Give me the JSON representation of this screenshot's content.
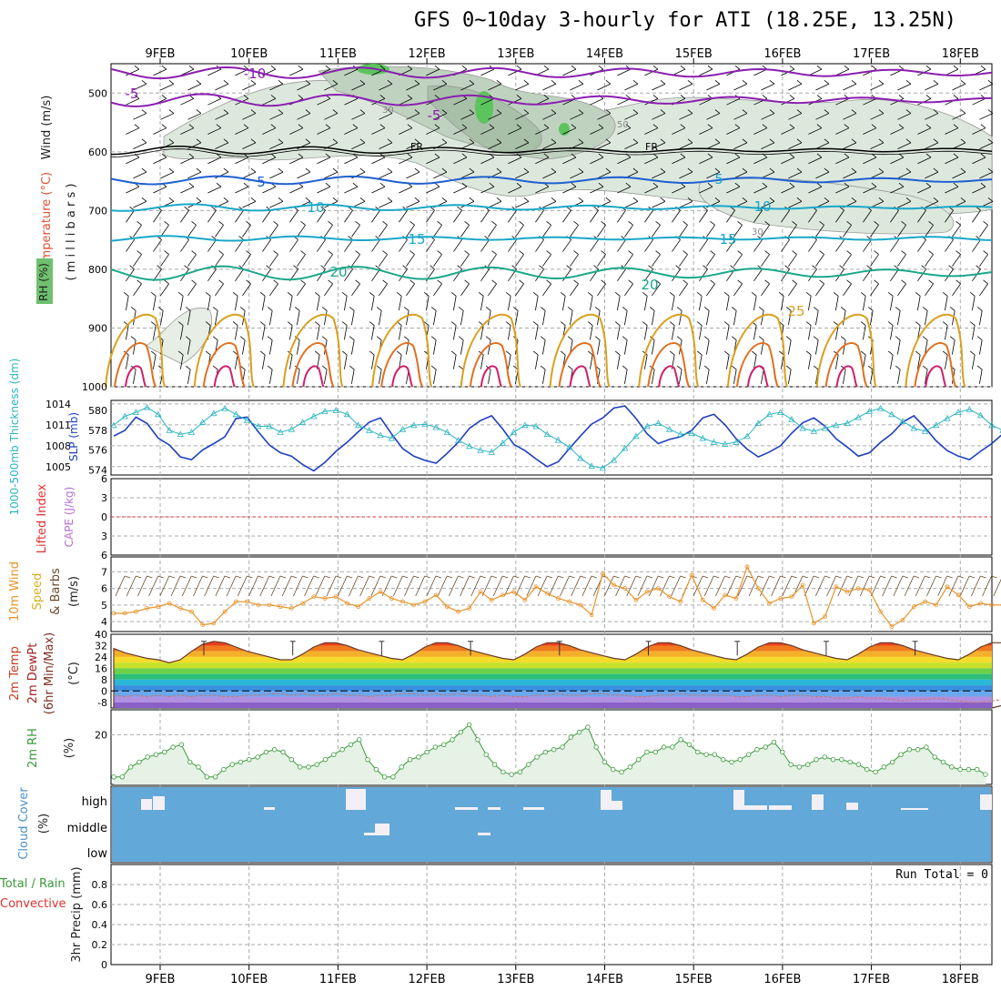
{
  "title": "GFS 0~10day 3-hourly for ATI (18.25E, 13.25N)",
  "dates": [
    "9FEB",
    "10FEB",
    "11FEB",
    "12FEB",
    "13FEB",
    "14FEB",
    "15FEB",
    "16FEB",
    "17FEB",
    "18FEB"
  ],
  "panels": {
    "upper": {
      "ylabel_wind": "Wind (m/s)",
      "ylabel_temp": "Temperature (°C)",
      "ylabel_units": "( m i l l i b a r s )",
      "ylabel_rh": "RH (%)",
      "pressure_ticks": [
        "500",
        "600",
        "700",
        "800",
        "900",
        "1000"
      ],
      "isotherm_labels": [
        "-10",
        "-5",
        "-5",
        "5",
        "5",
        "10",
        "10",
        "15",
        "15",
        "20",
        "20",
        "25",
        "FR",
        "FR"
      ],
      "rh_labels": [
        "30",
        "50",
        "30"
      ]
    },
    "thickness": {
      "ylabel_thk": "1000-500mb Thickness (dm)",
      "ylabel_slp": "SLP (mb)",
      "left_ticks": [
        "580",
        "578",
        "576",
        "574"
      ],
      "right_ticks": [
        "1014",
        "1011",
        "1008",
        "1005"
      ]
    },
    "cape": {
      "ylabel_li": "Lifted Index",
      "ylabel_cape": "CAPE (J/kg)",
      "ticks": [
        "6",
        "3",
        "0",
        "3",
        "6"
      ]
    },
    "wind10m": {
      "ylabel_1": "10m Wind",
      "ylabel_2": "Speed",
      "ylabel_3": "& Barbs",
      "ylabel_units": "(m/s)",
      "ticks": [
        "7",
        "6",
        "5",
        "4"
      ]
    },
    "temp2m": {
      "ylabel_1": "2m Temp",
      "ylabel_2": "2m DewPt",
      "ylabel_3": "(6hr Min/Max)",
      "ylabel_units": "(°C)",
      "ticks": [
        "40",
        "32",
        "24",
        "16",
        "8",
        "0",
        "-8"
      ]
    },
    "rh2m": {
      "ylabel": "2m RH",
      "ylabel_units": "(%)",
      "ticks": [
        "20"
      ]
    },
    "cloud": {
      "ylabel": "Cloud Cover",
      "ylabel_units": "(%)",
      "levels": [
        "high",
        "middle",
        "low"
      ]
    },
    "precip": {
      "ylabel_1": "Total / Rain",
      "ylabel_2": "Convective",
      "ylabel_3": "3hr Precip (mm)",
      "run_total": "Run Total = 0",
      "ticks": [
        "0.8",
        "0.6",
        "0.4",
        "0.2",
        "0"
      ]
    }
  },
  "colors": {
    "slp": "#1f3fbf",
    "thickness": "#2bb5c0",
    "wind_speed": "#e8932a",
    "rh": "#3a9a3a",
    "rh_fill": "#e6f2e6",
    "cloud_bg": "#62a8d8",
    "isotherm_neg": "#8a1fb0",
    "isotherm_cold": "#1f5fd0",
    "isotherm_cool": "#1aa8c8",
    "isotherm_mid": "#1aa88a",
    "isotherm_warm": "#d9a020",
    "isotherm_hot": "#e07020",
    "isotherm_vhot": "#d0206a"
  },
  "chart_data": [
    {
      "type": "line",
      "name": "slp_thickness",
      "series": [
        {
          "name": "SLP (mb)",
          "axis": "right",
          "values": [
            1009.4,
            1010.2,
            1012.1,
            1011.2,
            1009.1,
            1008.1,
            1006.4,
            1006.0,
            1007.4,
            1008.3,
            1009.3,
            1011.9,
            1012.1,
            1010.0,
            1008.1,
            1007.0,
            1006.5,
            1005.3,
            1004.4,
            1005.6,
            1007.2,
            1008.5,
            1010.0,
            1011.4,
            1012.0,
            1009.7,
            1007.6,
            1006.5,
            1005.9,
            1005.5,
            1006.9,
            1008.5,
            1010.5,
            1011.6,
            1012.3,
            1010.4,
            1008.2,
            1007.3,
            1006.1,
            1005.0,
            1005.7,
            1007.6,
            1009.4,
            1011.1,
            1012.0,
            1013.4,
            1013.7,
            1011.9,
            1009.7,
            1008.3,
            1008.9,
            1009.3,
            1010.2,
            1012.0,
            1012.5,
            1011.0,
            1009.0,
            1007.5,
            1006.4,
            1007.1,
            1008.0,
            1009.8,
            1011.3,
            1012.0,
            1010.8,
            1009.0,
            1007.8,
            1006.5,
            1007.0,
            1008.5,
            1009.7,
            1011.4,
            1012.3,
            1010.6,
            1008.7,
            1007.3,
            1006.5,
            1006.0,
            1007.2,
            1008.3,
            1009.7,
            1011.2,
            1012.2,
            1010.5,
            1008.7,
            1007.4,
            1006.2,
            1005.8,
            1006.8,
            1008.0,
            1009.1,
            1010.5,
            1011.5
          ]
        },
        {
          "name": "1000-500mb Thickness (dm)",
          "axis": "left",
          "values": [
            578.5,
            579.4,
            579.8,
            580.3,
            579.6,
            578.0,
            577.6,
            577.8,
            578.8,
            579.7,
            580.2,
            579.6,
            579.0,
            578.4,
            578.4,
            577.8,
            578.1,
            578.8,
            579.4,
            579.9,
            580.0,
            579.6,
            578.5,
            578.0,
            577.5,
            577.2,
            578.1,
            578.5,
            578.6,
            578.3,
            577.8,
            577.0,
            576.4,
            576.0,
            575.8,
            576.7,
            577.8,
            578.5,
            578.4,
            577.6,
            577.0,
            576.3,
            575.2,
            574.4,
            574.2,
            575.0,
            576.2,
            577.4,
            578.4,
            578.7,
            578.1,
            577.6,
            577.7,
            577.2,
            576.8,
            576.6,
            576.8,
            577.4,
            578.7,
            579.6,
            579.8,
            579.1,
            578.2,
            577.9,
            578.2,
            578.5,
            578.7,
            579.3,
            579.9,
            580.2,
            579.6,
            578.9,
            578.2,
            577.9,
            578.5,
            579.2,
            579.8,
            580.1,
            579.5,
            578.5,
            578.0,
            577.8,
            578.4,
            579.3,
            580.1,
            580.2,
            579.5,
            578.6,
            578.0,
            578.0,
            578.3,
            578.6,
            578.6
          ]
        }
      ],
      "ylim_left": [
        573.5,
        581
      ],
      "ylim_right": [
        1003.8,
        1014.5
      ]
    },
    {
      "type": "line",
      "name": "wind10m",
      "series": [
        {
          "name": "Speed",
          "values": [
            4.5,
            4.5,
            4.6,
            4.8,
            4.9,
            5.1,
            4.8,
            4.6,
            3.8,
            3.9,
            4.6,
            5.2,
            5.2,
            5.0,
            5.0,
            4.9,
            4.8,
            5.1,
            5.5,
            5.4,
            5.5,
            5.1,
            4.9,
            5.4,
            5.8,
            5.4,
            5.2,
            5.0,
            5.2,
            5.6,
            4.9,
            4.6,
            4.8,
            5.8,
            5.3,
            5.6,
            5.8,
            5.3,
            6.1,
            5.7,
            5.4,
            5.2,
            5.0,
            4.4,
            6.9,
            6.2,
            6.0,
            5.3,
            5.8,
            6.0,
            5.5,
            5.2,
            6.8,
            5.3,
            4.8,
            5.6,
            5.4,
            7.3,
            6.0,
            5.1,
            5.4,
            5.5,
            6.2,
            3.9,
            4.3,
            6.1,
            5.8,
            6.0,
            5.9,
            4.6,
            3.7,
            4.1,
            4.9,
            5.2,
            5.0,
            6.1,
            5.6,
            4.9,
            5.1,
            5.0,
            5.0,
            5.0,
            5.3,
            4.9,
            6.3,
            7.4,
            5.4,
            5.3,
            5.4,
            6.0,
            7.6,
            6.4,
            5.7,
            5.4
          ]
        }
      ],
      "ylim": [
        3.4,
        7.9
      ]
    },
    {
      "type": "area",
      "name": "temp2m",
      "series": [
        {
          "name": "2m Temp",
          "values": [
            30,
            27,
            25,
            23,
            22,
            20,
            22,
            28,
            33,
            35,
            34,
            31,
            28,
            26,
            24,
            22,
            22,
            26,
            31,
            34,
            34,
            32,
            29,
            27,
            25,
            23,
            22,
            26,
            31,
            34,
            34,
            32,
            29,
            27,
            25,
            23,
            22,
            26,
            31,
            34,
            34,
            32,
            29,
            27,
            25,
            23,
            22,
            26,
            31,
            34,
            34,
            32,
            29,
            27,
            25,
            23,
            22,
            26,
            31,
            34,
            34,
            32,
            29,
            27,
            25,
            23,
            22,
            26,
            31,
            34,
            34,
            32,
            29,
            27,
            25,
            23,
            22,
            26,
            31,
            34,
            34,
            32,
            29,
            27,
            25,
            23,
            22,
            26,
            31,
            34,
            34,
            32,
            29,
            27,
            25,
            23,
            21
          ]
        },
        {
          "name": "2m DewPt",
          "values": [
            -3,
            -4,
            -3,
            -4,
            -3,
            -4,
            -3,
            -4,
            -3,
            -3,
            -4,
            -4,
            -3,
            -3,
            -2,
            -2,
            -3,
            -2,
            -3,
            -3,
            -2,
            -3,
            -3,
            -4,
            -3,
            -3,
            -2,
            -2,
            -3,
            -2,
            -3,
            -2,
            -3,
            -3,
            -4,
            -3,
            -4,
            -4,
            -3,
            -3,
            -2,
            -3,
            -3,
            -2,
            -2,
            -3,
            -3,
            -4,
            -4,
            -3,
            -3,
            -2,
            -3,
            -3,
            -3,
            -3,
            -4,
            -4,
            -3,
            -3,
            -4,
            -3,
            -3,
            -4,
            -4,
            -5,
            -5,
            -4,
            -5,
            -5,
            -6,
            -7,
            -6,
            -6,
            -5,
            -6,
            -7,
            -8,
            -8,
            -7,
            -6,
            -7,
            -8,
            -9,
            -8,
            -7,
            -6,
            -6,
            -5,
            -5,
            -4,
            -4,
            -4
          ]
        }
      ],
      "ylim": [
        -12,
        40
      ]
    },
    {
      "type": "area",
      "name": "rh2m",
      "series": [
        {
          "name": "2m RH",
          "values": [
            3,
            3,
            7,
            9,
            11,
            12,
            13,
            15,
            16,
            9,
            7,
            3,
            3,
            6,
            8,
            9,
            10,
            11,
            13,
            14,
            13,
            10,
            7,
            7,
            8,
            10,
            12,
            14,
            16,
            18,
            10,
            6,
            3,
            3,
            7,
            10,
            11,
            13,
            15,
            16,
            18,
            21,
            24,
            18,
            12,
            8,
            5,
            4,
            5,
            8,
            11,
            13,
            14,
            15,
            19,
            21,
            23,
            15,
            9,
            6,
            5,
            7,
            10,
            13,
            13,
            15,
            15,
            18,
            16,
            13,
            12,
            12,
            10,
            9,
            10,
            12,
            14,
            15,
            17,
            13,
            8,
            7,
            8,
            10,
            11,
            10,
            10,
            9,
            8,
            6,
            5,
            7,
            9,
            12,
            14,
            14,
            15,
            11,
            9,
            7,
            6,
            6,
            6,
            4
          ]
        }
      ],
      "ylim": [
        0,
        30
      ]
    },
    {
      "type": "bar",
      "name": "precip",
      "values": [],
      "ylim": [
        0,
        1
      ]
    }
  ]
}
